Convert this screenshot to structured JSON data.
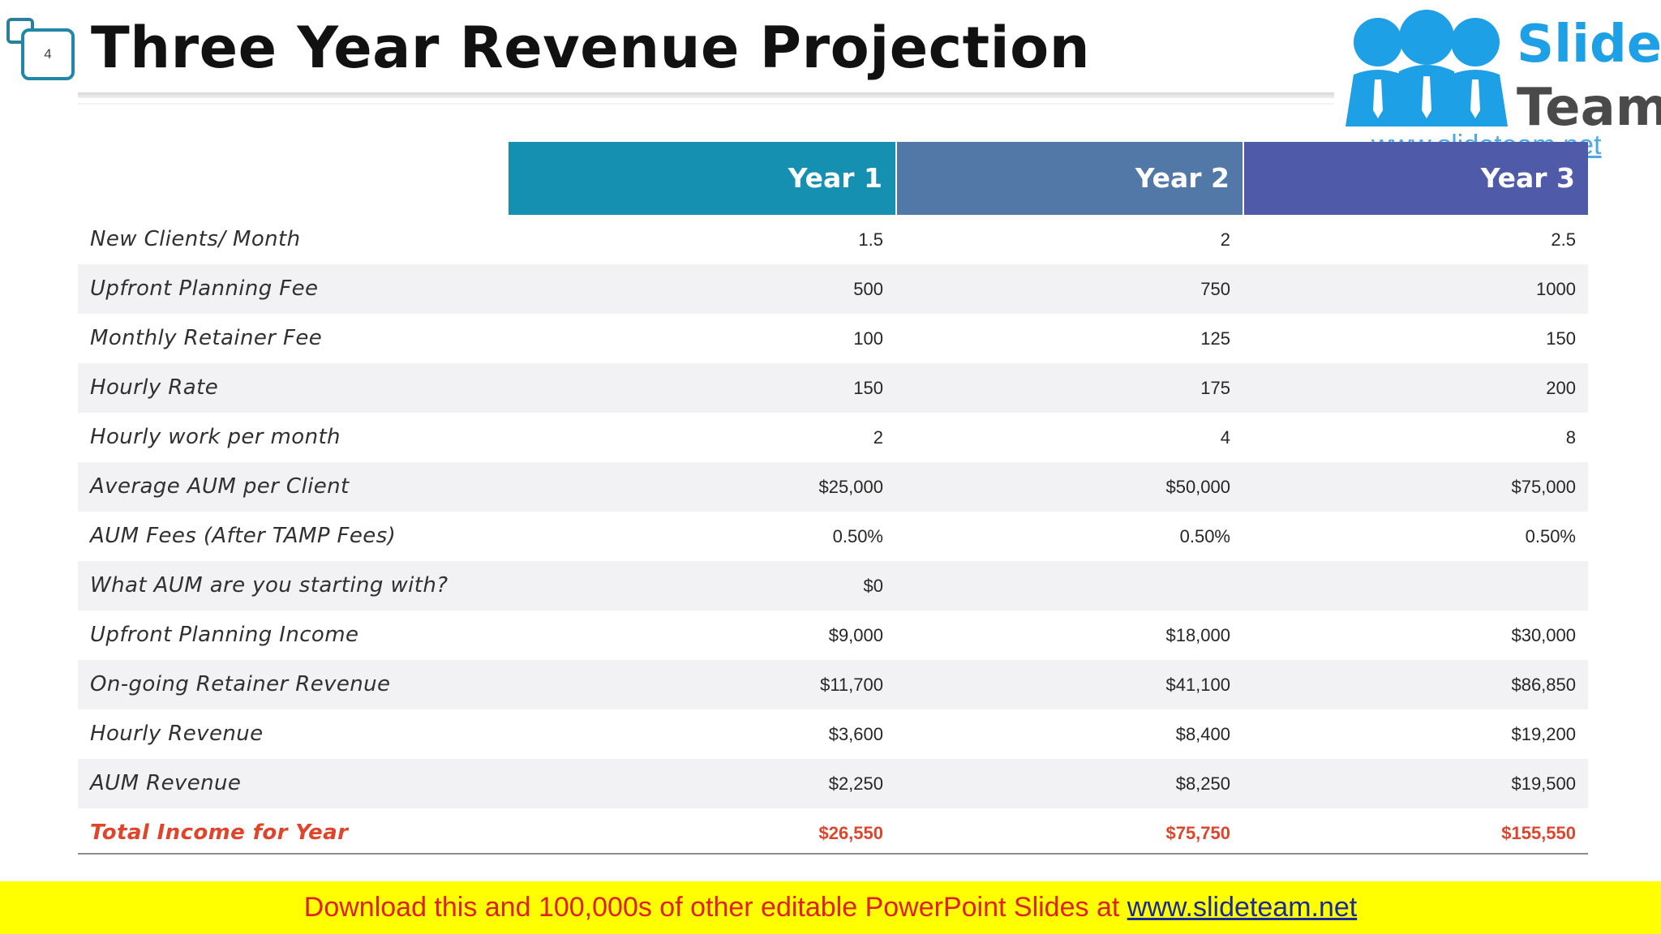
{
  "slide": {
    "number": "4",
    "title": "Three Year Revenue Projection"
  },
  "logo": {
    "word1": "Slide",
    "word2": "Team",
    "url": "www.slideteam.net",
    "colors": {
      "people": "#1ea0e6",
      "slide": "#1ea0e6",
      "team": "#4a4a4a"
    }
  },
  "table": {
    "headers": [
      "Year 1",
      "Year 2",
      "Year 3"
    ],
    "header_colors": [
      "#1590b0",
      "#5278a8",
      "#4f5aa8"
    ],
    "rows": [
      {
        "label": "New Clients/ Month",
        "values": [
          "1.5",
          "2",
          "2.5"
        ]
      },
      {
        "label": "Upfront Planning Fee",
        "values": [
          "500",
          "750",
          "1000"
        ]
      },
      {
        "label": "Monthly Retainer Fee",
        "values": [
          "100",
          "125",
          "150"
        ]
      },
      {
        "label": "Hourly Rate",
        "values": [
          "150",
          "175",
          "200"
        ]
      },
      {
        "label": "Hourly work per month",
        "values": [
          "2",
          "4",
          "8"
        ]
      },
      {
        "label": "Average AUM per Client",
        "values": [
          "$25,000",
          "$50,000",
          "$75,000"
        ]
      },
      {
        "label": "AUM Fees (After TAMP Fees)",
        "values": [
          "0.50%",
          "0.50%",
          "0.50%"
        ]
      },
      {
        "label": "What AUM are you starting with?",
        "values": [
          "$0",
          "",
          ""
        ]
      },
      {
        "label": "Upfront Planning Income",
        "values": [
          "$9,000",
          "$18,000",
          "$30,000"
        ]
      },
      {
        "label": "On-going Retainer Revenue",
        "values": [
          "$11,700",
          "$41,100",
          "$86,850"
        ]
      },
      {
        "label": "Hourly Revenue",
        "values": [
          "$3,600",
          "$8,400",
          "$19,200"
        ]
      },
      {
        "label": "AUM Revenue",
        "values": [
          "$2,250",
          "$8,250",
          "$19,500"
        ]
      },
      {
        "label": "Total Income for Year",
        "values": [
          "$26,550",
          "$75,750",
          "$155,550"
        ]
      }
    ],
    "total_color": "#e0452c"
  },
  "banner": {
    "text": "Download this and 100,000s of other editable PowerPoint Slides at ",
    "link": "www.slideteam.net",
    "background": "#ffff00",
    "text_color": "#e02020"
  }
}
